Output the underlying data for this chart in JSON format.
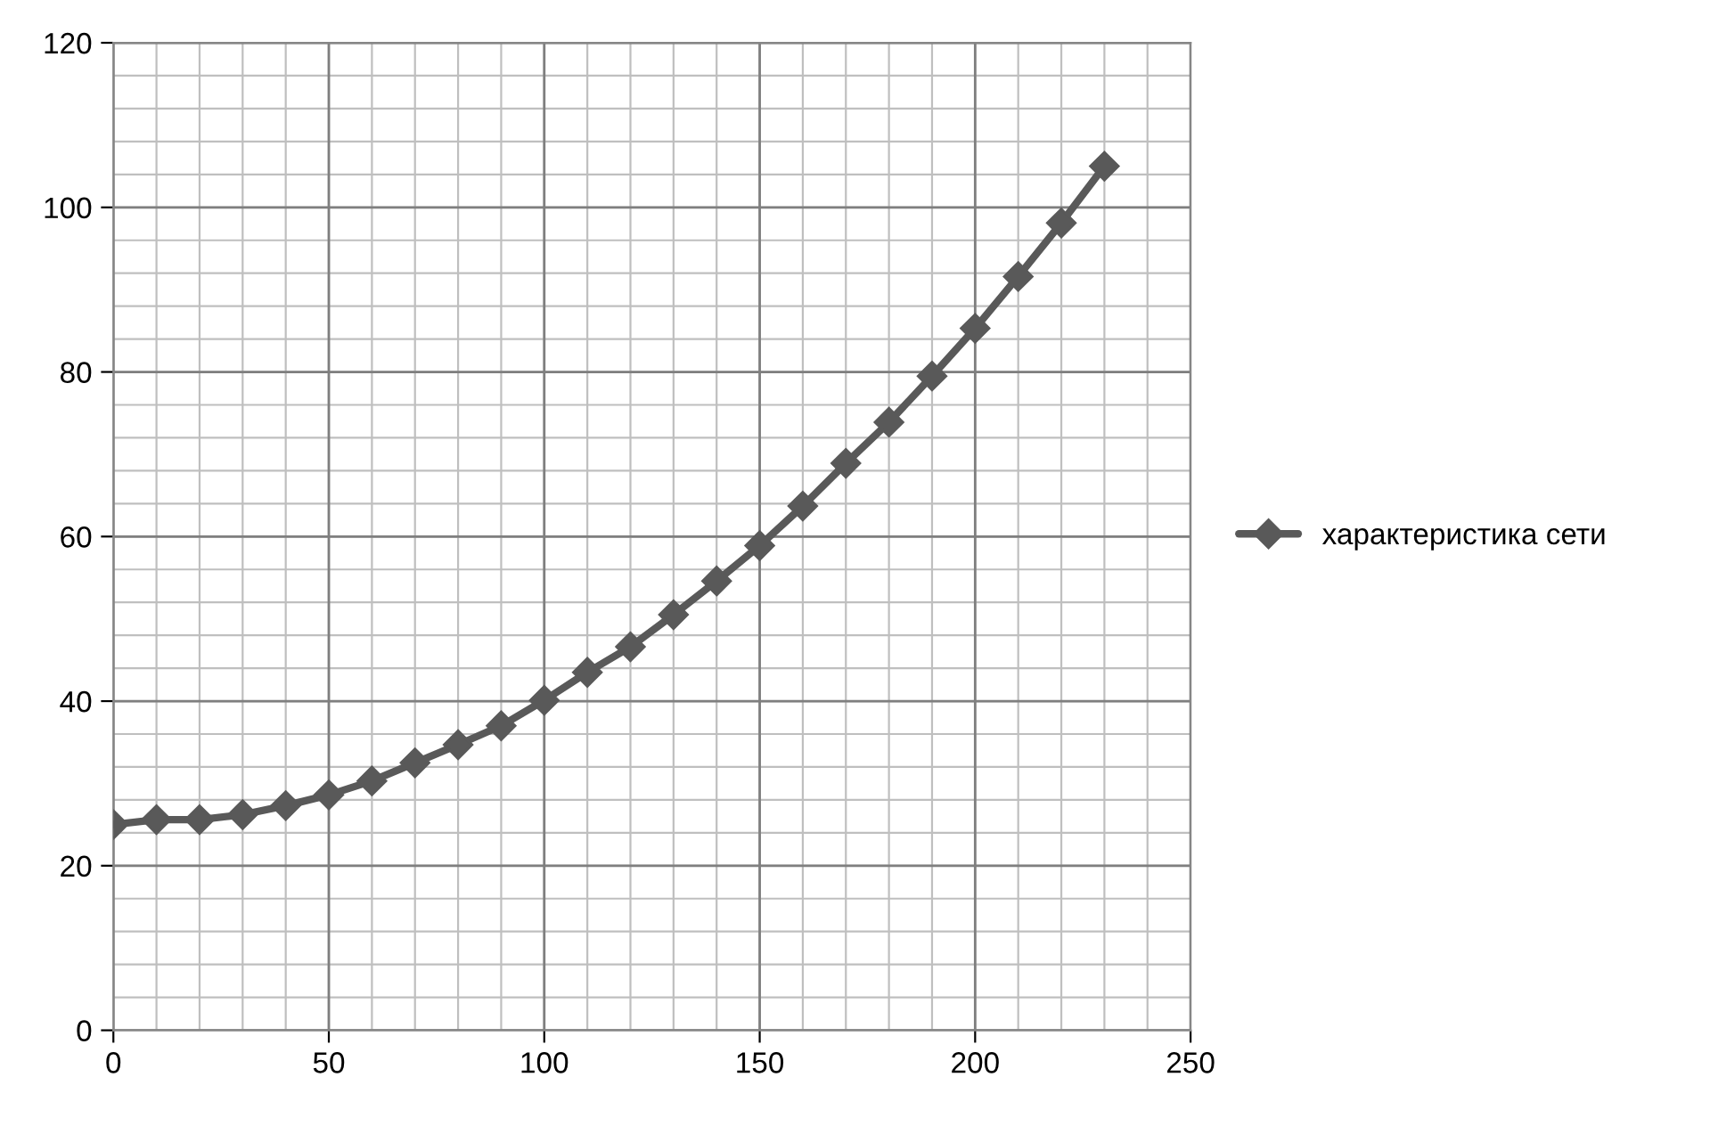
{
  "chart_data": {
    "type": "line",
    "x": [
      0,
      10,
      20,
      30,
      40,
      50,
      60,
      70,
      80,
      90,
      100,
      110,
      120,
      130,
      140,
      150,
      160,
      170,
      180,
      190,
      200,
      210,
      220,
      230
    ],
    "series": [
      {
        "name": "характеристика сети",
        "color": "#595959",
        "values": [
          25,
          25.6,
          25.6,
          26.2,
          27.3,
          28.6,
          30.3,
          32.5,
          34.7,
          37.0,
          40.1,
          43.5,
          46.6,
          50.5,
          54.6,
          58.9,
          63.7,
          68.9,
          73.9,
          79.5,
          85.3,
          91.6,
          98.1,
          105.0
        ]
      }
    ],
    "xlim": [
      0,
      250
    ],
    "xticks": [
      0,
      50,
      100,
      150,
      200,
      250
    ],
    "ylim": [
      0,
      120
    ],
    "yticks": [
      0,
      20,
      40,
      60,
      80,
      100,
      120
    ],
    "grid": true,
    "legend": "right",
    "marker": "diamond",
    "line_style": "solid"
  }
}
